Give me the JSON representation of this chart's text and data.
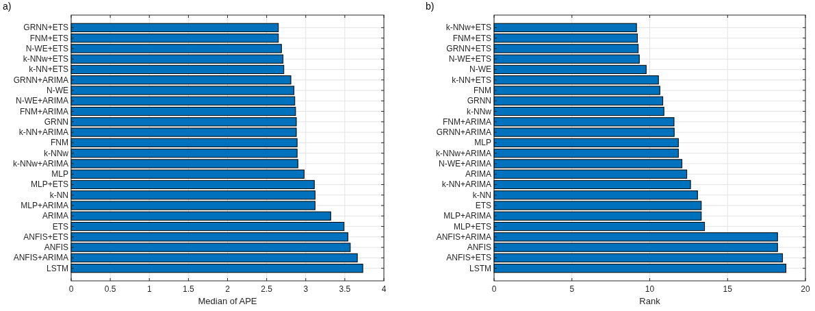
{
  "chart_data": [
    {
      "type": "bar",
      "orientation": "horizontal",
      "title": "a)",
      "xlabel": "Median of APE",
      "categories": [
        "GRNN+ETS",
        "FNM+ETS",
        "N-WE+ETS",
        "k-NNw+ETS",
        "k-NN+ETS",
        "GRNN+ARIMA",
        "N-WE",
        "N-WE+ARIMA",
        "FNM+ARIMA",
        "GRNN",
        "k-NN+ARIMA",
        "FNM",
        "k-NNw",
        "k-NNw+ARIMA",
        "MLP",
        "MLP+ETS",
        "k-NN",
        "MLP+ARIMA",
        "ARIMA",
        "ETS",
        "ANFIS+ETS",
        "ANFIS",
        "ANFIS+ARIMA",
        "LSTM"
      ],
      "values": [
        2.65,
        2.65,
        2.69,
        2.71,
        2.72,
        2.81,
        2.85,
        2.86,
        2.87,
        2.88,
        2.88,
        2.89,
        2.89,
        2.9,
        2.98,
        3.11,
        3.12,
        3.12,
        3.32,
        3.49,
        3.54,
        3.57,
        3.66,
        3.73
      ],
      "color": "#0072bd",
      "xlim": [
        0,
        4
      ],
      "xticks": [
        0,
        0.5,
        1,
        1.5,
        2,
        2.5,
        3,
        3.5,
        4
      ],
      "grid": true
    },
    {
      "type": "bar",
      "orientation": "horizontal",
      "title": "b)",
      "xlabel": "Rank",
      "categories": [
        "k-NNw+ETS",
        "FNM+ETS",
        "GRNN+ETS",
        "N-WE+ETS",
        "N-WE",
        "k-NN+ETS",
        "FNM",
        "GRNN",
        "k-NNw",
        "FNM+ARIMA",
        "GRNN+ARIMA",
        "MLP",
        "k-NNw+ARIMA",
        "N-WE+ARIMA",
        "ARIMA",
        "k-NN+ARIMA",
        "k-NN",
        "ETS",
        "MLP+ARIMA",
        "MLP+ETS",
        "ANFIS+ARIMA",
        "ANFIS",
        "ANFIS+ETS",
        "LSTM"
      ],
      "values": [
        9.15,
        9.21,
        9.26,
        9.33,
        9.77,
        10.56,
        10.65,
        10.84,
        10.91,
        11.56,
        11.57,
        11.84,
        11.84,
        12.07,
        12.38,
        12.62,
        13.07,
        13.31,
        13.31,
        13.52,
        18.21,
        18.21,
        18.53,
        18.75
      ],
      "color": "#0072bd",
      "xlim": [
        0,
        20
      ],
      "xticks": [
        0,
        5,
        10,
        15,
        20
      ],
      "grid": true
    }
  ]
}
